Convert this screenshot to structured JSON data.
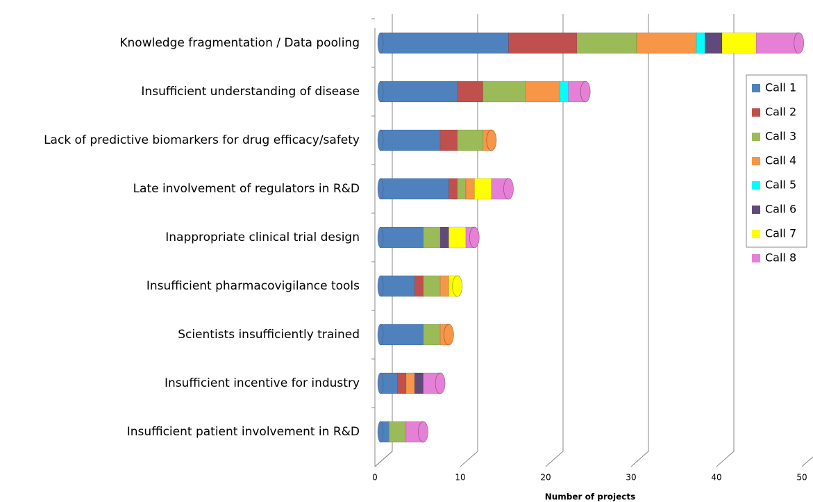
{
  "chart_data": {
    "type": "bar",
    "orientation": "horizontal",
    "stacked": true,
    "x_label": "Number of projects",
    "categories": [
      "Knowledge fragmentation / Data pooling",
      "Insufficient understanding of disease",
      "Lack of predictive biomarkers for drug efficacy/safety",
      "Late involvement of regulators in R&D",
      "Inappropriate clinical trial design",
      "Insufficient pharmacovigilance tools",
      "Scientists insufficiently trained",
      "Insufficient incentive for industry",
      "Insufficient patient involvement in R&D"
    ],
    "series": [
      {
        "name": "Call 1",
        "color": "#4f81bd",
        "values": [
          15,
          9,
          7,
          8,
          5,
          4,
          5,
          2,
          1
        ]
      },
      {
        "name": "Call 2",
        "color": "#c0504d",
        "values": [
          8,
          3,
          2,
          1,
          0,
          1,
          0,
          1,
          0
        ]
      },
      {
        "name": "Call 3",
        "color": "#9bbb59",
        "values": [
          7,
          5,
          3,
          1,
          2,
          2,
          2,
          0,
          2
        ]
      },
      {
        "name": "Call 4",
        "color": "#f79646",
        "values": [
          7,
          4,
          1,
          1,
          0,
          1,
          1,
          1,
          0
        ]
      },
      {
        "name": "Call 5",
        "color": "#00ffff",
        "values": [
          1,
          1,
          0,
          0,
          0,
          0,
          0,
          0,
          0
        ]
      },
      {
        "name": "Call 6",
        "color": "#604a7b",
        "values": [
          2,
          0,
          0,
          0,
          1,
          0,
          0,
          1,
          0
        ]
      },
      {
        "name": "Call 7",
        "color": "#ffff00",
        "values": [
          4,
          0,
          0,
          2,
          2,
          1,
          0,
          0,
          0
        ]
      },
      {
        "name": "Call 8",
        "color": "#e680d6",
        "values": [
          5,
          2,
          0,
          2,
          1,
          0,
          0,
          2,
          2
        ]
      }
    ],
    "xlim": [
      0,
      50
    ],
    "xticks": [
      0,
      10,
      20,
      30,
      40,
      50
    ],
    "grid": true,
    "legend": "right"
  }
}
